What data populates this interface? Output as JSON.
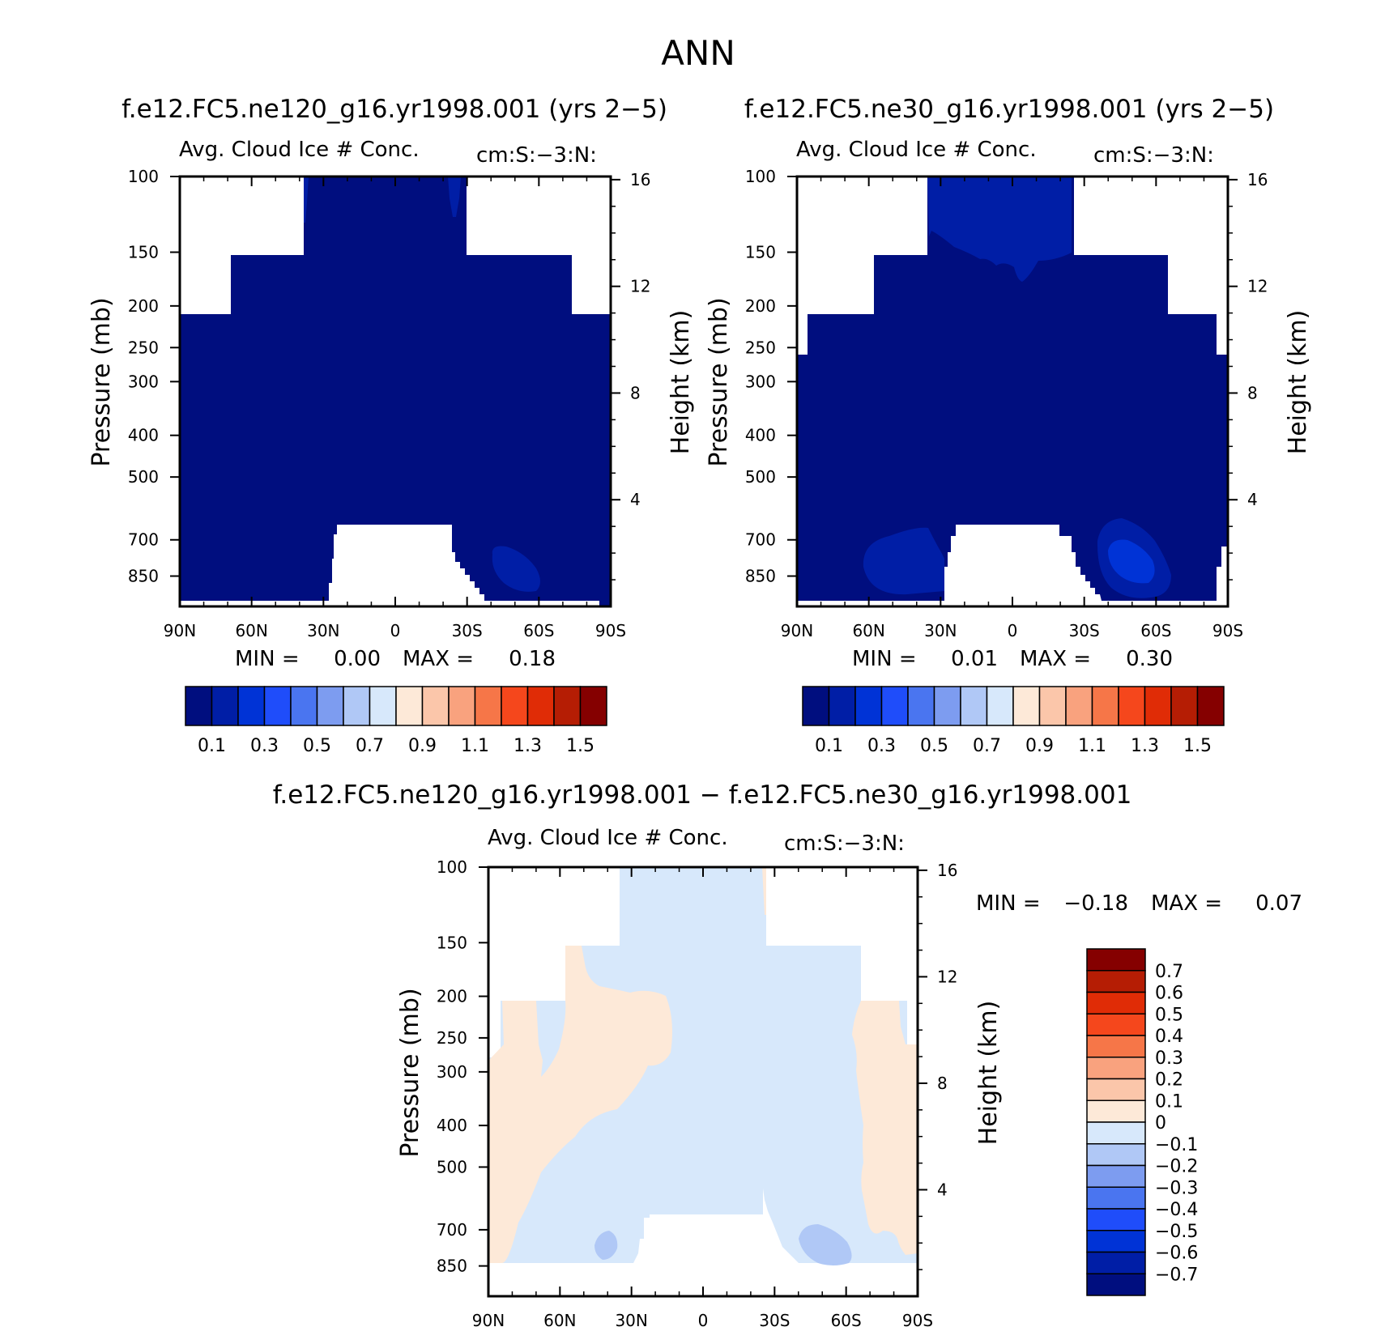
{
  "figure_title": "ANN",
  "panels": [
    {
      "title": "f.e12.FC5.ne120_g16.yr1998.001 (yrs 2−5)",
      "variable_label": "Avg. Cloud Ice # Conc.",
      "units_label": "cm:S:−3:N:",
      "ylabel": "Pressure (mb)",
      "y2label": "Height (km)",
      "min_label": "MIN =",
      "min_value": "0.00",
      "max_label": "MAX =",
      "max_value": "0.18"
    },
    {
      "title": "f.e12.FC5.ne30_g16.yr1998.001 (yrs 2−5)",
      "variable_label": "Avg. Cloud Ice # Conc.",
      "units_label": "cm:S:−3:N:",
      "ylabel": "Pressure (mb)",
      "y2label": "Height (km)",
      "min_label": "MIN =",
      "min_value": "0.01",
      "max_label": "MAX =",
      "max_value": "0.30"
    },
    {
      "title": "f.e12.FC5.ne120_g16.yr1998.001 − f.e12.FC5.ne30_g16.yr1998.001",
      "variable_label": "Avg. Cloud Ice # Conc.",
      "units_label": "cm:S:−3:N:",
      "ylabel": "Pressure (mb)",
      "y2label": "Height (km)",
      "min_label": "MIN =",
      "min_value": "−0.18",
      "max_label": "MAX =",
      "max_value": "0.07"
    }
  ],
  "chart_data": [
    {
      "type": "heatmap",
      "title": "f.e12.FC5.ne120_g16.yr1998.001 (yrs 2−5)",
      "xlabel": "",
      "ylabel": "Pressure (mb)",
      "y2label": "Height (km)",
      "x_ticks": [
        "90N",
        "60N",
        "30N",
        "0",
        "30S",
        "60S",
        "90S"
      ],
      "y_ticks": [
        100,
        150,
        200,
        250,
        300,
        400,
        500,
        700,
        850
      ],
      "y2_ticks": [
        16,
        12,
        8,
        4
      ],
      "ylim": [
        100,
        1000
      ],
      "colorbar_labels": [
        "0.1",
        "0.3",
        "0.5",
        "0.7",
        "0.9",
        "1.1",
        "1.3",
        "1.5"
      ],
      "colorbar_colors": [
        "#000e7f",
        "#001ea6",
        "#0033d6",
        "#1f4dfa",
        "#4a75f0",
        "#7d9cf0",
        "#b0c8f6",
        "#d7e8fb",
        "#fde9d8",
        "#fbc6aa",
        "#f9a27e",
        "#f67648",
        "#f5471c",
        "#e02c06",
        "#b51d04",
        "#850000"
      ],
      "min": 0.0,
      "max": 0.18
    },
    {
      "type": "heatmap",
      "title": "f.e12.FC5.ne30_g16.yr1998.001 (yrs 2−5)",
      "xlabel": "",
      "ylabel": "Pressure (mb)",
      "y2label": "Height (km)",
      "x_ticks": [
        "90N",
        "60N",
        "30N",
        "0",
        "30S",
        "60S",
        "90S"
      ],
      "y_ticks": [
        100,
        150,
        200,
        250,
        300,
        400,
        500,
        700,
        850
      ],
      "y2_ticks": [
        16,
        12,
        8,
        4
      ],
      "ylim": [
        100,
        1000
      ],
      "colorbar_labels": [
        "0.1",
        "0.3",
        "0.5",
        "0.7",
        "0.9",
        "1.1",
        "1.3",
        "1.5"
      ],
      "colorbar_colors": [
        "#000e7f",
        "#001ea6",
        "#0033d6",
        "#1f4dfa",
        "#4a75f0",
        "#7d9cf0",
        "#b0c8f6",
        "#d7e8fb",
        "#fde9d8",
        "#fbc6aa",
        "#f9a27e",
        "#f67648",
        "#f5471c",
        "#e02c06",
        "#b51d04",
        "#850000"
      ],
      "min": 0.01,
      "max": 0.3
    },
    {
      "type": "heatmap",
      "title": "f.e12.FC5.ne120_g16.yr1998.001 − f.e12.FC5.ne30_g16.yr1998.001",
      "xlabel": "",
      "ylabel": "Pressure (mb)",
      "y2label": "Height (km)",
      "x_ticks": [
        "90N",
        "60N",
        "30N",
        "0",
        "30S",
        "60S",
        "90S"
      ],
      "y_ticks": [
        100,
        150,
        200,
        250,
        300,
        400,
        500,
        700,
        850
      ],
      "y2_ticks": [
        16,
        12,
        8,
        4
      ],
      "ylim": [
        100,
        1000
      ],
      "colorbar_labels": [
        "0.7",
        "0.6",
        "0.5",
        "0.4",
        "0.3",
        "0.2",
        "0.1",
        "0",
        "−0.1",
        "−0.2",
        "−0.3",
        "−0.4",
        "−0.5",
        "−0.6",
        "−0.7"
      ],
      "colorbar_colors": [
        "#850000",
        "#b51d04",
        "#e02c06",
        "#f5471c",
        "#f67648",
        "#f9a27e",
        "#fbc6aa",
        "#fde9d8",
        "#d7e8fb",
        "#b0c8f6",
        "#7d9cf0",
        "#4a75f0",
        "#1f4dfa",
        "#0033d6",
        "#001ea6",
        "#000e7f"
      ],
      "min": -0.18,
      "max": 0.07
    }
  ]
}
